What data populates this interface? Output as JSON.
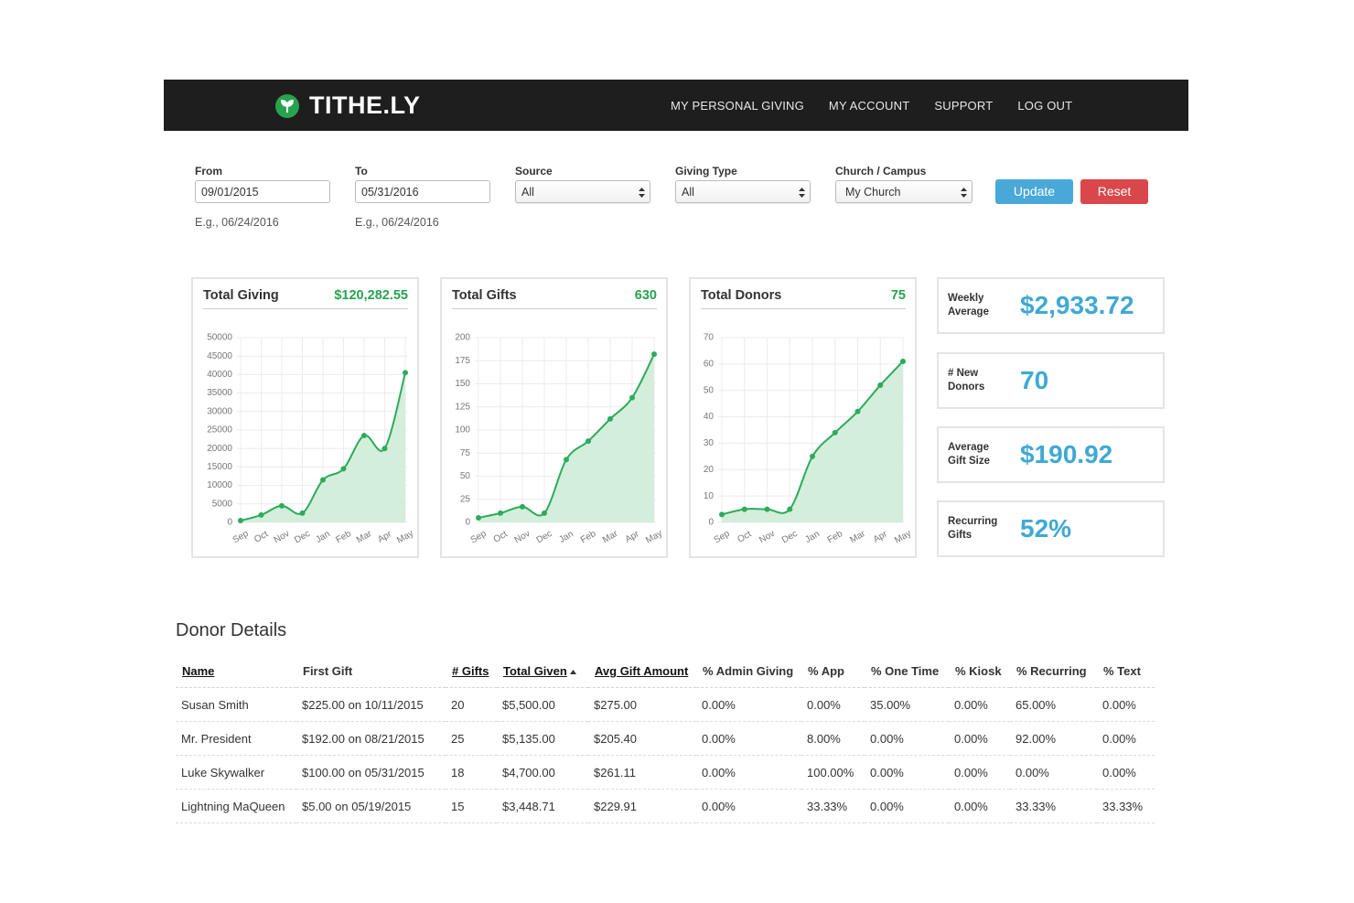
{
  "nav": {
    "brand": "TITHE.LY",
    "links": [
      "MY PERSONAL GIVING",
      "MY ACCOUNT",
      "SUPPORT",
      "LOG OUT"
    ]
  },
  "filters": {
    "from": {
      "label": "From",
      "value": "09/01/2015",
      "hint": "E.g., 06/24/2016"
    },
    "to": {
      "label": "To",
      "value": "05/31/2016",
      "hint": "E.g., 06/24/2016"
    },
    "source": {
      "label": "Source",
      "value": "All"
    },
    "giving_type": {
      "label": "Giving Type",
      "value": "All"
    },
    "campus": {
      "label": "Church / Campus",
      "value": "My Church"
    },
    "update": "Update",
    "reset": "Reset"
  },
  "chart_data": [
    {
      "type": "line",
      "title": "Total Giving",
      "total": "$120,282.55",
      "color": "#2eaa5c",
      "fill": "#d3eedb",
      "categories": [
        "Sep",
        "Oct",
        "Nov",
        "Dec",
        "Jan",
        "Feb",
        "Mar",
        "Apr",
        "May"
      ],
      "values": [
        500,
        2000,
        4500,
        2500,
        11500,
        14500,
        23500,
        20000,
        40500
      ],
      "ylim": [
        0,
        50000
      ],
      "yticks": [
        0,
        5000,
        10000,
        15000,
        20000,
        25000,
        30000,
        35000,
        40000,
        45000,
        50000
      ],
      "grid": true
    },
    {
      "type": "line",
      "title": "Total Gifts",
      "total": "630",
      "color": "#2eaa5c",
      "fill": "#d3eedb",
      "categories": [
        "Sep",
        "Oct",
        "Nov",
        "Dec",
        "Jan",
        "Feb",
        "Mar",
        "Apr",
        "May"
      ],
      "values": [
        5,
        10,
        17,
        10,
        68,
        88,
        112,
        135,
        182
      ],
      "ylim": [
        0,
        200
      ],
      "yticks": [
        0,
        25,
        50,
        75,
        100,
        125,
        150,
        175,
        200
      ],
      "grid": true
    },
    {
      "type": "line",
      "title": "Total Donors",
      "total": "75",
      "color": "#2eaa5c",
      "fill": "#d3eedb",
      "categories": [
        "Sep",
        "Oct",
        "Nov",
        "Dec",
        "Jan",
        "Feb",
        "Mar",
        "Apr",
        "May"
      ],
      "values": [
        3,
        5,
        5,
        5,
        25,
        34,
        42,
        52,
        61
      ],
      "ylim": [
        0,
        70
      ],
      "yticks": [
        0,
        10,
        20,
        30,
        40,
        50,
        60,
        70
      ],
      "grid": true
    }
  ],
  "stats": [
    {
      "label": "Weekly Average",
      "value": "$2,933.72"
    },
    {
      "label": "# New Donors",
      "value": "70"
    },
    {
      "label": "Average Gift Size",
      "value": "$190.92"
    },
    {
      "label": "Recurring Gifts",
      "value": "52%"
    }
  ],
  "table": {
    "title": "Donor Details",
    "columns": [
      "Name",
      "First Gift",
      "# Gifts",
      "Total Given",
      "Avg Gift Amount",
      "% Admin Giving",
      "% App",
      "% One Time",
      "% Kiosk",
      "% Recurring",
      "% Text"
    ],
    "rows": [
      [
        "Susan Smith",
        "$225.00 on 10/11/2015",
        "20",
        "$5,500.00",
        "$275.00",
        "0.00%",
        "0.00%",
        "35.00%",
        "0.00%",
        "65.00%",
        "0.00%"
      ],
      [
        "Mr. President",
        "$192.00 on 08/21/2015",
        "25",
        "$5,135.00",
        "$205.40",
        "0.00%",
        "8.00%",
        "0.00%",
        "0.00%",
        "92.00%",
        "0.00%"
      ],
      [
        "Luke Skywalker",
        "$100.00 on 05/31/2015",
        "18",
        "$4,700.00",
        "$261.11",
        "0.00%",
        "100.00%",
        "0.00%",
        "0.00%",
        "0.00%",
        "0.00%"
      ],
      [
        "Lightning MaQueen",
        "$5.00 on 05/19/2015",
        "15",
        "$3,448.71",
        "$229.91",
        "0.00%",
        "33.33%",
        "0.00%",
        "0.00%",
        "33.33%",
        "33.33%"
      ]
    ]
  }
}
